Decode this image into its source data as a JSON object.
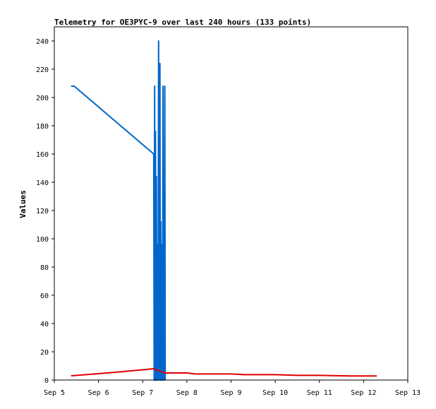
{
  "chart_data": {
    "type": "line",
    "title": "Telemetry for OE3PYC-9 over last 240 hours (133 points)",
    "ylabel": "Values",
    "xlabel": "",
    "ylim": [
      0,
      250
    ],
    "yticks": [
      0,
      20,
      40,
      60,
      80,
      100,
      120,
      140,
      160,
      180,
      200,
      220,
      240
    ],
    "xlim": [
      5,
      13
    ],
    "xticks": [
      {
        "value": 5,
        "label": "Sep 5"
      },
      {
        "value": 6,
        "label": "Sep 6"
      },
      {
        "value": 7,
        "label": "Sep 7"
      },
      {
        "value": 8,
        "label": "Sep 8"
      },
      {
        "value": 9,
        "label": "Sep 9"
      },
      {
        "value": 10,
        "label": "Sep 10"
      },
      {
        "value": 11,
        "label": "Sep 11"
      },
      {
        "value": 12,
        "label": "Sep 12"
      },
      {
        "value": 13,
        "label": "Sep 13"
      }
    ],
    "grid": false,
    "series": [
      {
        "color": "#0066cc",
        "x": [
          5.38,
          5.45,
          7.25,
          7.26,
          7.27,
          7.28,
          7.29,
          7.3,
          7.31,
          7.32,
          7.33,
          7.34,
          7.35,
          7.36,
          7.37,
          7.38,
          7.39,
          7.4,
          7.41,
          7.42,
          7.43,
          7.44,
          7.45,
          7.46,
          7.47,
          7.48,
          7.49,
          7.5,
          7.51
        ],
        "values": [
          208,
          208,
          160,
          0,
          208,
          0,
          176,
          0,
          144,
          0,
          96,
          0,
          64,
          240,
          0,
          184,
          224,
          0,
          112,
          0,
          96,
          0,
          56,
          208,
          0,
          96,
          0,
          208,
          0
        ]
      },
      {
        "color": "#e00000",
        "x": [
          5.38,
          6.0,
          6.5,
          7.25,
          7.5,
          8.0,
          8.2,
          9.0,
          9.3,
          10.0,
          10.5,
          11.0,
          11.7,
          12.3
        ],
        "values": [
          3,
          4.5,
          5.8,
          8,
          5,
          5,
          4.3,
          4.3,
          3.8,
          3.8,
          3.3,
          3.3,
          2.9,
          2.9
        ]
      }
    ]
  }
}
